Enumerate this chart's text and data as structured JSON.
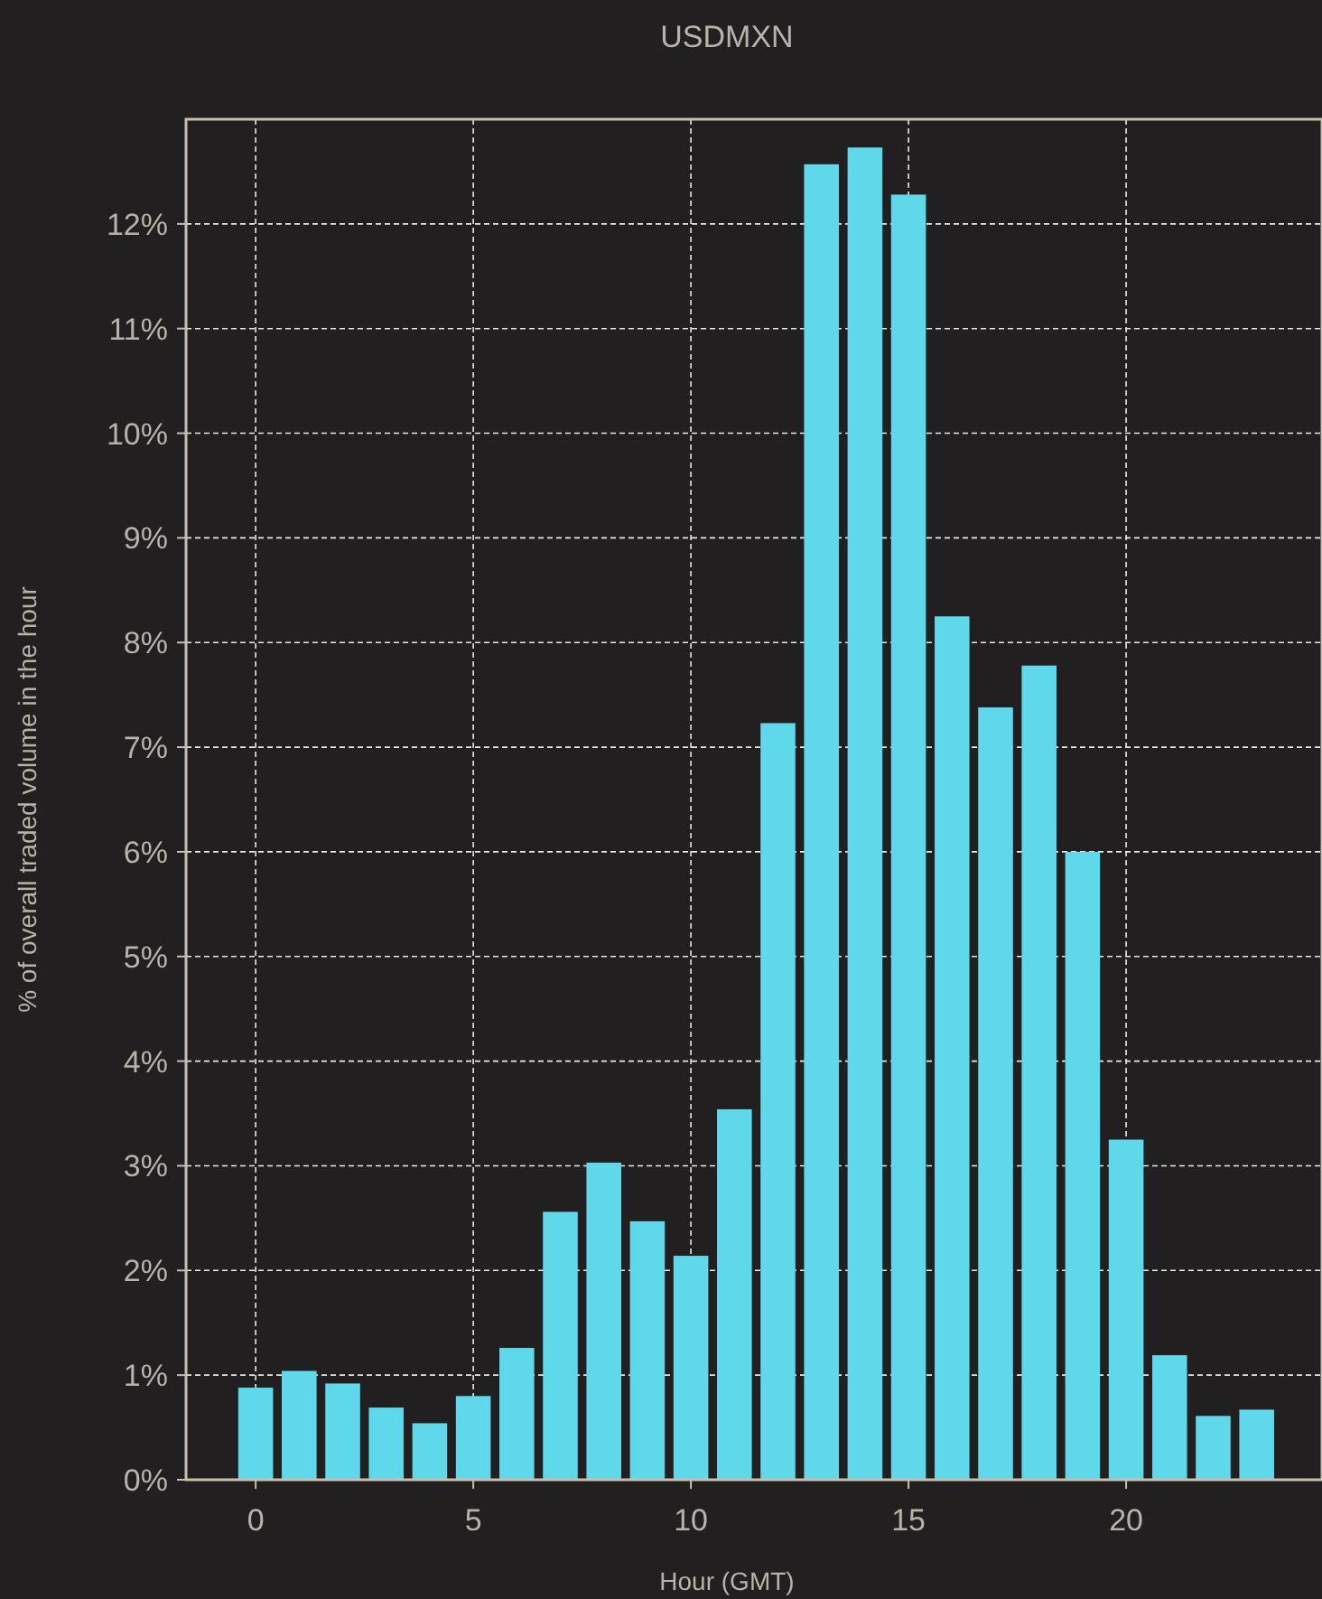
{
  "chart_data": {
    "type": "bar",
    "title": "USDMXN",
    "xlabel": "Hour (GMT)",
    "ylabel": "% of overall traded volume in the hour",
    "x": [
      0,
      1,
      2,
      3,
      4,
      5,
      6,
      7,
      8,
      9,
      10,
      11,
      12,
      13,
      14,
      15,
      16,
      17,
      18,
      19,
      20,
      21,
      22,
      23
    ],
    "values": [
      0.88,
      1.04,
      0.92,
      0.69,
      0.54,
      0.8,
      1.26,
      2.56,
      3.03,
      2.47,
      2.14,
      3.54,
      7.23,
      12.57,
      12.73,
      12.28,
      8.25,
      7.38,
      7.78,
      6.0,
      3.25,
      1.19,
      0.61,
      0.67
    ],
    "color": "#5fd8ec",
    "xlim": [
      -1.6,
      24.5
    ],
    "xticks": [
      0,
      5,
      10,
      15,
      20
    ],
    "ylim": [
      0,
      13
    ],
    "yticks": [
      {
        "value": 0,
        "label": "0%"
      },
      {
        "value": 1,
        "label": "1%"
      },
      {
        "value": 2,
        "label": "2%"
      },
      {
        "value": 3,
        "label": "3%"
      },
      {
        "value": 4,
        "label": "4%"
      },
      {
        "value": 5,
        "label": "5%"
      },
      {
        "value": 6,
        "label": "6%"
      },
      {
        "value": 7,
        "label": "7%"
      },
      {
        "value": 8,
        "label": "8%"
      },
      {
        "value": 9,
        "label": "9%"
      },
      {
        "value": 10,
        "label": "10%"
      },
      {
        "value": 11,
        "label": "11%"
      },
      {
        "value": 12,
        "label": "12%"
      }
    ],
    "grid": true
  }
}
